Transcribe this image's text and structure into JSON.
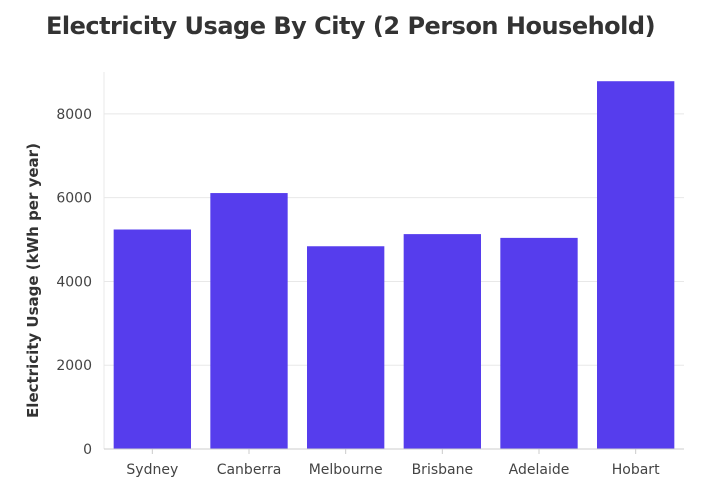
{
  "chart_data": {
    "type": "bar",
    "title": "Electricity Usage By City (2 Person Household)",
    "xlabel": "",
    "ylabel": "Electricity Usage (kWh per year)",
    "categories": [
      "Sydney",
      "Canberra",
      "Melbourne",
      "Brisbane",
      "Adelaide",
      "Hobart"
    ],
    "values": [
      5240,
      6110,
      4840,
      5130,
      5040,
      8780
    ],
    "ylim": [
      0,
      9000
    ],
    "yticks": [
      0,
      2000,
      4000,
      6000,
      8000
    ],
    "ytick_labels": [
      "0",
      "2000",
      "4000",
      "6000",
      "8000"
    ],
    "grid": true,
    "colors": {
      "bar": "#563ded",
      "grid": "#e8e8e8",
      "axis": "#cccccc"
    }
  }
}
